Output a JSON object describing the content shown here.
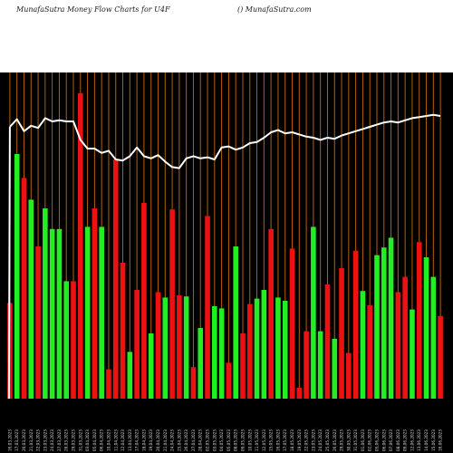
{
  "header": {
    "left_title": "MunafaSutra  Money Flow  Charts for U4F",
    "right_title": "() MunafaSutra.com"
  },
  "colors": {
    "background": "#000000",
    "page": "#ffffff",
    "grid": "#b4600c",
    "up": "#22ee22",
    "down": "#ee1111",
    "line": "#ffffff",
    "tick_text": "#dddddd"
  },
  "chart_data": {
    "type": "bar",
    "title": "",
    "xlabel": "",
    "ylabel": "",
    "grid": true,
    "categories": [
      "16,03,2023",
      "17,03,2023",
      "20,03,2023",
      "21,03,2023",
      "22,03,2023",
      "23,03,2023",
      "24,03,2023",
      "27,03,2023",
      "28,03,2023",
      "29,03,2023",
      "31,03,2023",
      "03,04,2023",
      "05,04,2023",
      "06,04,2023",
      "10,04,2023",
      "11,04,2023",
      "12,04,2023",
      "13,04,2023",
      "17,04,2023",
      "18,04,2023",
      "19,04,2023",
      "20,04,2023",
      "21,04,2023",
      "24,04,2023",
      "25,04,2023",
      "26,04,2023",
      "27,04,2023",
      "28,04,2023",
      "02,05,2023",
      "03,05,2023",
      "04,05,2023",
      "05,05,2023",
      "08,05,2023",
      "09,05,2023",
      "10,05,2023",
      "11,05,2023",
      "12,05,2023",
      "15,05,2023",
      "16,05,2023",
      "17,05,2023",
      "18,05,2023",
      "19,05,2023",
      "22,05,2023",
      "23,05,2023",
      "24,05,2023",
      "25,05,2023",
      "26,05,2023",
      "29,05,2023",
      "30,05,2023",
      "31,05,2023",
      "01,06,2023",
      "02,06,2023",
      "05,06,2023",
      "06,06,2023",
      "07,06,2023",
      "08,06,2023",
      "09,06,2023",
      "12,06,2023",
      "13,06,2023",
      "14,06,2023",
      "15,06,2023",
      "16,06,2023"
    ],
    "bars": {
      "colors": [
        "down",
        "up",
        "down",
        "up",
        "down",
        "up",
        "up",
        "up",
        "up",
        "down",
        "down",
        "up",
        "down",
        "up",
        "down",
        "down",
        "down",
        "up",
        "down",
        "down",
        "up",
        "down",
        "up",
        "down",
        "down",
        "up",
        "down",
        "up",
        "down",
        "up",
        "up",
        "down",
        "up",
        "down",
        "down",
        "up",
        "up",
        "down",
        "up",
        "up",
        "down",
        "down",
        "down",
        "up",
        "up",
        "down",
        "up",
        "down",
        "down",
        "down",
        "up",
        "down",
        "up",
        "up",
        "up",
        "down",
        "down",
        "up",
        "down",
        "up",
        "up",
        "down"
      ],
      "values": [
        88,
        225,
        203,
        183,
        140,
        175,
        156,
        156,
        108,
        108,
        281,
        158,
        175,
        158,
        27,
        220,
        125,
        43,
        100,
        180,
        60,
        98,
        93,
        174,
        95,
        94,
        29,
        65,
        168,
        85,
        83,
        33,
        140,
        60,
        87,
        92,
        100,
        156,
        93,
        90,
        138,
        10,
        62,
        158,
        62,
        105,
        55,
        120,
        42,
        136,
        99,
        86,
        132,
        139,
        148,
        98,
        112,
        82,
        144,
        130,
        112,
        76
      ],
      "ylim": [
        0,
        300
      ]
    },
    "line": {
      "values": [
        250,
        257,
        246,
        251,
        249,
        258,
        255,
        256,
        255,
        255,
        238,
        230,
        230,
        226,
        228,
        220,
        219,
        223,
        231,
        223,
        221,
        224,
        218,
        213,
        212,
        221,
        223,
        221,
        222,
        220,
        231,
        232,
        229,
        231,
        235,
        236,
        240,
        245,
        247,
        244,
        245,
        243,
        241,
        240,
        238,
        240,
        239,
        242,
        244,
        246,
        248,
        250,
        252,
        254,
        255,
        254,
        256,
        258,
        259,
        260,
        261,
        260
      ],
      "ylim": [
        0,
        300
      ]
    }
  }
}
